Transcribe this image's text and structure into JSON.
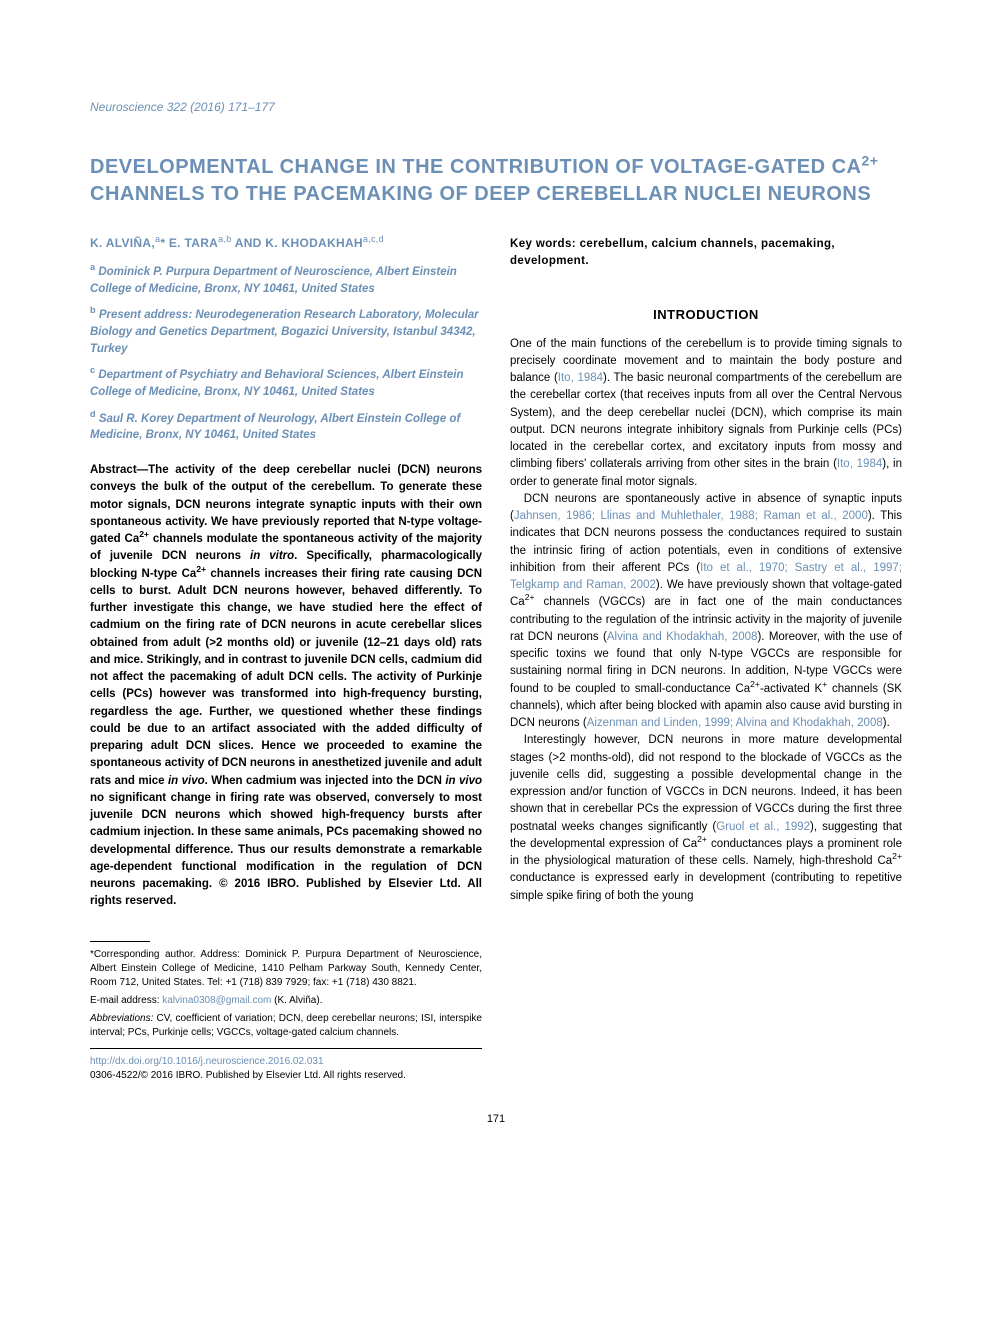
{
  "journal": {
    "name": "Neuroscience",
    "citation": "322 (2016) 171–177"
  },
  "title_html": "DEVELOPMENTAL CHANGE IN THE CONTRIBUTION OF VOLTAGE-GATED Ca<sup>2+</sup> CHANNELS TO THE PACEMAKING OF DEEP CEREBELLAR NUCLEI NEURONS",
  "authors_html": "K. ALVIÑA,<sup>a</sup>* E. TARA<sup>a,b</sup> AND K. KHODAKHAH<sup>a,c,d</sup>",
  "affiliations": [
    {
      "sup": "a",
      "text": "Dominick P. Purpura Department of Neuroscience, Albert Einstein College of Medicine, Bronx, NY 10461, United States"
    },
    {
      "sup": "b",
      "text": "Present address: Neurodegeneration Research Laboratory, Molecular Biology and Genetics Department, Bogazici University, Istanbul 34342, Turkey"
    },
    {
      "sup": "c",
      "text": "Department of Psychiatry and Behavioral Sciences, Albert Einstein College of Medicine, Bronx, NY 10461, United States"
    },
    {
      "sup": "d",
      "text": "Saul R. Korey Department of Neurology, Albert Einstein College of Medicine, Bronx, NY 10461, United States"
    }
  ],
  "abstract_html": "<b>Abstract—The activity of the deep cerebellar nuclei (DCN) neurons conveys the bulk of the output of the cerebellum. To generate these motor signals, DCN neurons integrate synaptic inputs with their own spontaneous activity. We have previously reported that N-type voltage-gated Ca<sup>2+</sup> channels modulate the spontaneous activity of the majority of juvenile DCN neurons <span class='italic'>in vitro</span>. Specifically, pharmacologically blocking N-type Ca<sup>2+</sup> channels increases their firing rate causing DCN cells to burst. Adult DCN neurons however, behaved differently. To further investigate this change, we have studied here the effect of cadmium on the firing rate of DCN neurons in acute cerebellar slices obtained from adult (&gt;2 months old) or juvenile (12–21 days old) rats and mice. Strikingly, and in contrast to juvenile DCN cells, cadmium did not affect the pacemaking of adult DCN cells. The activity of Purkinje cells (PCs) however was transformed into high-frequency bursting, regardless the age. Further, we questioned whether these findings could be due to an artifact associated with the added difficulty of preparing adult DCN slices. Hence we proceeded to examine the spontaneous activity of DCN neurons in anesthetized juvenile and adult rats and mice <span class='italic'>in vivo</span>. When cadmium was injected into the DCN <span class='italic'>in vivo</span> no significant change in firing rate was observed, conversely to most juvenile DCN neurons which showed high-frequency bursts after cadmium injection. In these same animals, PCs pacemaking showed no developmental difference. Thus our results demonstrate a remarkable age-dependent functional modification in the regulation of DCN neurons pacemaking. © 2016 IBRO. Published by Elsevier Ltd. All rights reserved.</b>",
  "footnotes": {
    "corresponding": "*Corresponding author. Address: Dominick P. Purpura Department of Neuroscience, Albert Einstein College of Medicine, 1410 Pelham Parkway South, Kennedy Center, Room 712, United States. Tel: +1 (718) 839 7929; fax: +1 (718) 430 8821.",
    "email_label": "E-mail address: ",
    "email": "kalvina0308@gmail.com",
    "email_person": " (K. Alviña).",
    "abbreviations_html": "<span class='italic'>Abbreviations:</span> CV, coefficient of variation; DCN, deep cerebellar neurons; ISI, interspike interval; PCs, Purkinje cells; VGCCs, voltage-gated calcium channels."
  },
  "doi": {
    "url": "http://dx.doi.org/10.1016/j.neuroscience.2016.02.031",
    "copyright": "0306-4522/© 2016 IBRO. Published by Elsevier Ltd. All rights reserved."
  },
  "keywords": "Key words: cerebellum, calcium channels, pacemaking, development.",
  "section_heading": "INTRODUCTION",
  "paragraphs": [
    "One of the main functions of the cerebellum is to provide timing signals to precisely coordinate movement and to maintain the body posture and balance (<span class='ref'>Ito, 1984</span>). The basic neuronal compartments of the cerebellum are the cerebellar cortex (that receives inputs from all over the Central Nervous System), and the deep cerebellar nuclei (DCN), which comprise its main output. DCN neurons integrate inhibitory signals from Purkinje cells (PCs) located in the cerebellar cortex, and excitatory inputs from mossy and climbing fibers' collaterals arriving from other sites in the brain (<span class='ref'>Ito, 1984</span>), in order to generate final motor signals.",
    "DCN neurons are spontaneously active in absence of synaptic inputs (<span class='ref'>Jahnsen, 1986; Llinas and Muhlethaler, 1988; Raman et al., 2000</span>). This indicates that DCN neurons possess the conductances required to sustain the intrinsic firing of action potentials, even in conditions of extensive inhibition from their afferent PCs (<span class='ref'>Ito et al., 1970; Sastry et al., 1997; Telgkamp and Raman, 2002</span>). We have previously shown that voltage-gated Ca<sup>2+</sup> channels (VGCCs) are in fact one of the main conductances contributing to the regulation of the intrinsic activity in the majority of juvenile rat DCN neurons (<span class='ref'>Alvina and Khodakhah, 2008</span>). Moreover, with the use of specific toxins we found that only N-type VGCCs are responsible for sustaining normal firing in DCN neurons. In addition, N-type VGCCs were found to be coupled to small-conductance Ca<sup>2+</sup>-activated K<sup>+</sup> channels (SK channels), which after being blocked with apamin also cause avid bursting in DCN neurons (<span class='ref'>Aizenman and Linden, 1999; Alvina and Khodakhah, 2008</span>).",
    "Interestingly however, DCN neurons in more mature developmental stages (&gt;2 months-old), did not respond to the blockade of VGCCs as the juvenile cells did, suggesting a possible developmental change in the expression and/or function of VGCCs in DCN neurons. Indeed, it has been shown that in cerebellar PCs the expression of VGCCs during the first three postnatal weeks changes significantly (<span class='ref'>Gruol et al., 1992</span>), suggesting that the developmental expression of Ca<sup>2+</sup> conductances plays a prominent role in the physiological maturation of these cells. Namely, high-threshold Ca<sup>2+</sup> conductance is expressed early in development (contributing to repetitive simple spike firing of both the young"
  ],
  "page_number": "171",
  "colors": {
    "link": "#6b8fb5",
    "text": "#000000",
    "background": "#ffffff"
  },
  "fonts": {
    "body_family": "Arial, Helvetica, sans-serif",
    "title_size_pt": 15,
    "body_size_pt": 9,
    "footnote_size_pt": 7.5
  }
}
